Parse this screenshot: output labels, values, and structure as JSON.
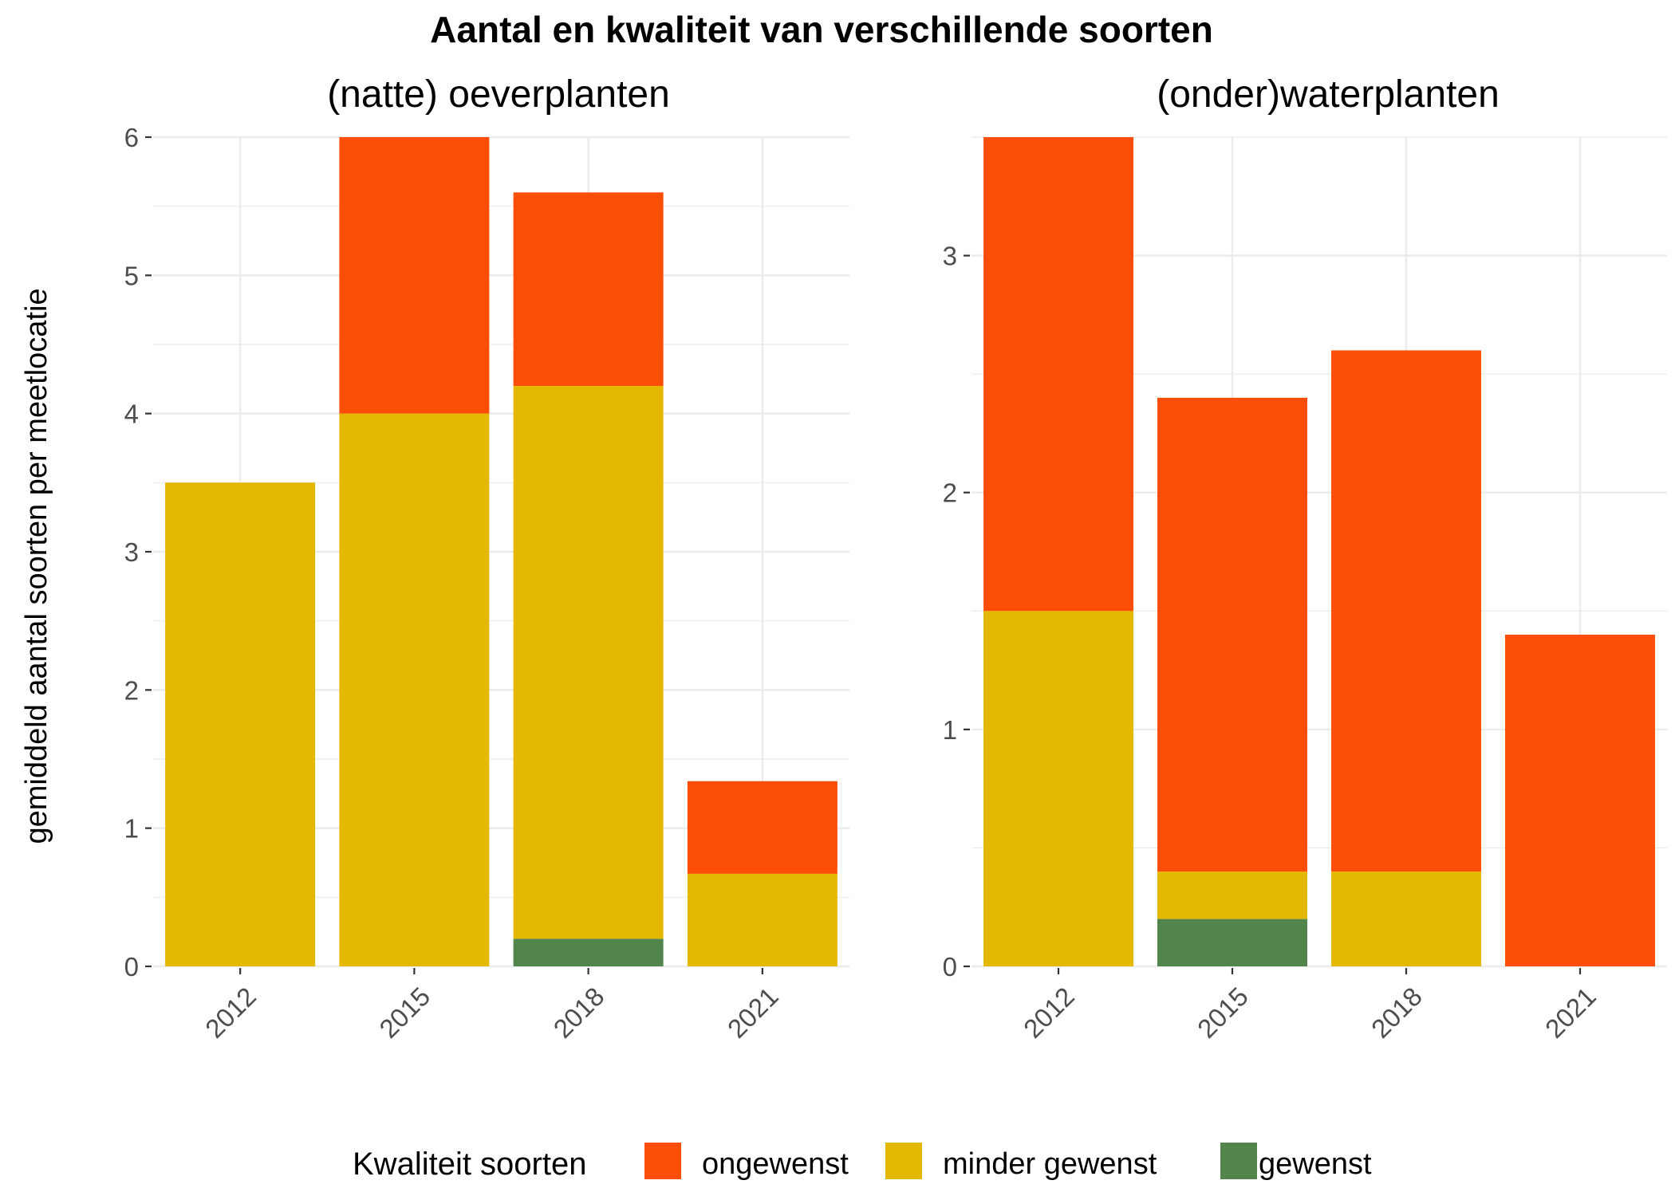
{
  "chart_data": {
    "type": "bar",
    "stacked": true,
    "title": "Aantal en kwaliteit van verschillende soorten",
    "ylabel": "gemiddeld aantal soorten per meetlocatie",
    "legend": {
      "title": "Kwaliteit soorten",
      "position": "bottom",
      "entries": [
        {
          "name": "ongewenst",
          "color": "#fc4e07"
        },
        {
          "name": "minder gewenst",
          "color": "#e5b800"
        },
        {
          "name": "gewenst",
          "color": "#52854c"
        }
      ]
    },
    "grid": true,
    "panels": [
      {
        "title": "(natte) oeverplanten",
        "categories": [
          "2012",
          "2015",
          "2018",
          "2021"
        ],
        "ylim": [
          0,
          6
        ],
        "yticks": [
          0,
          1,
          2,
          3,
          4,
          5,
          6
        ],
        "series": [
          {
            "name": "gewenst",
            "values": [
              0,
              0,
              0.2,
              0
            ]
          },
          {
            "name": "minder gewenst",
            "values": [
              3.5,
              4.0,
              4.0,
              0.67
            ]
          },
          {
            "name": "ongewenst",
            "values": [
              0,
              2.0,
              1.4,
              0.67
            ]
          }
        ]
      },
      {
        "title": "(onder)waterplanten",
        "categories": [
          "2012",
          "2015",
          "2018",
          "2021"
        ],
        "ylim": [
          0,
          3.5
        ],
        "yticks": [
          0,
          1,
          2,
          3
        ],
        "series": [
          {
            "name": "gewenst",
            "values": [
              0,
              0.2,
              0,
              0
            ]
          },
          {
            "name": "minder gewenst",
            "values": [
              1.5,
              0.2,
              0.4,
              0
            ]
          },
          {
            "name": "ongewenst",
            "values": [
              2.0,
              2.0,
              2.2,
              1.4
            ]
          }
        ]
      }
    ]
  }
}
